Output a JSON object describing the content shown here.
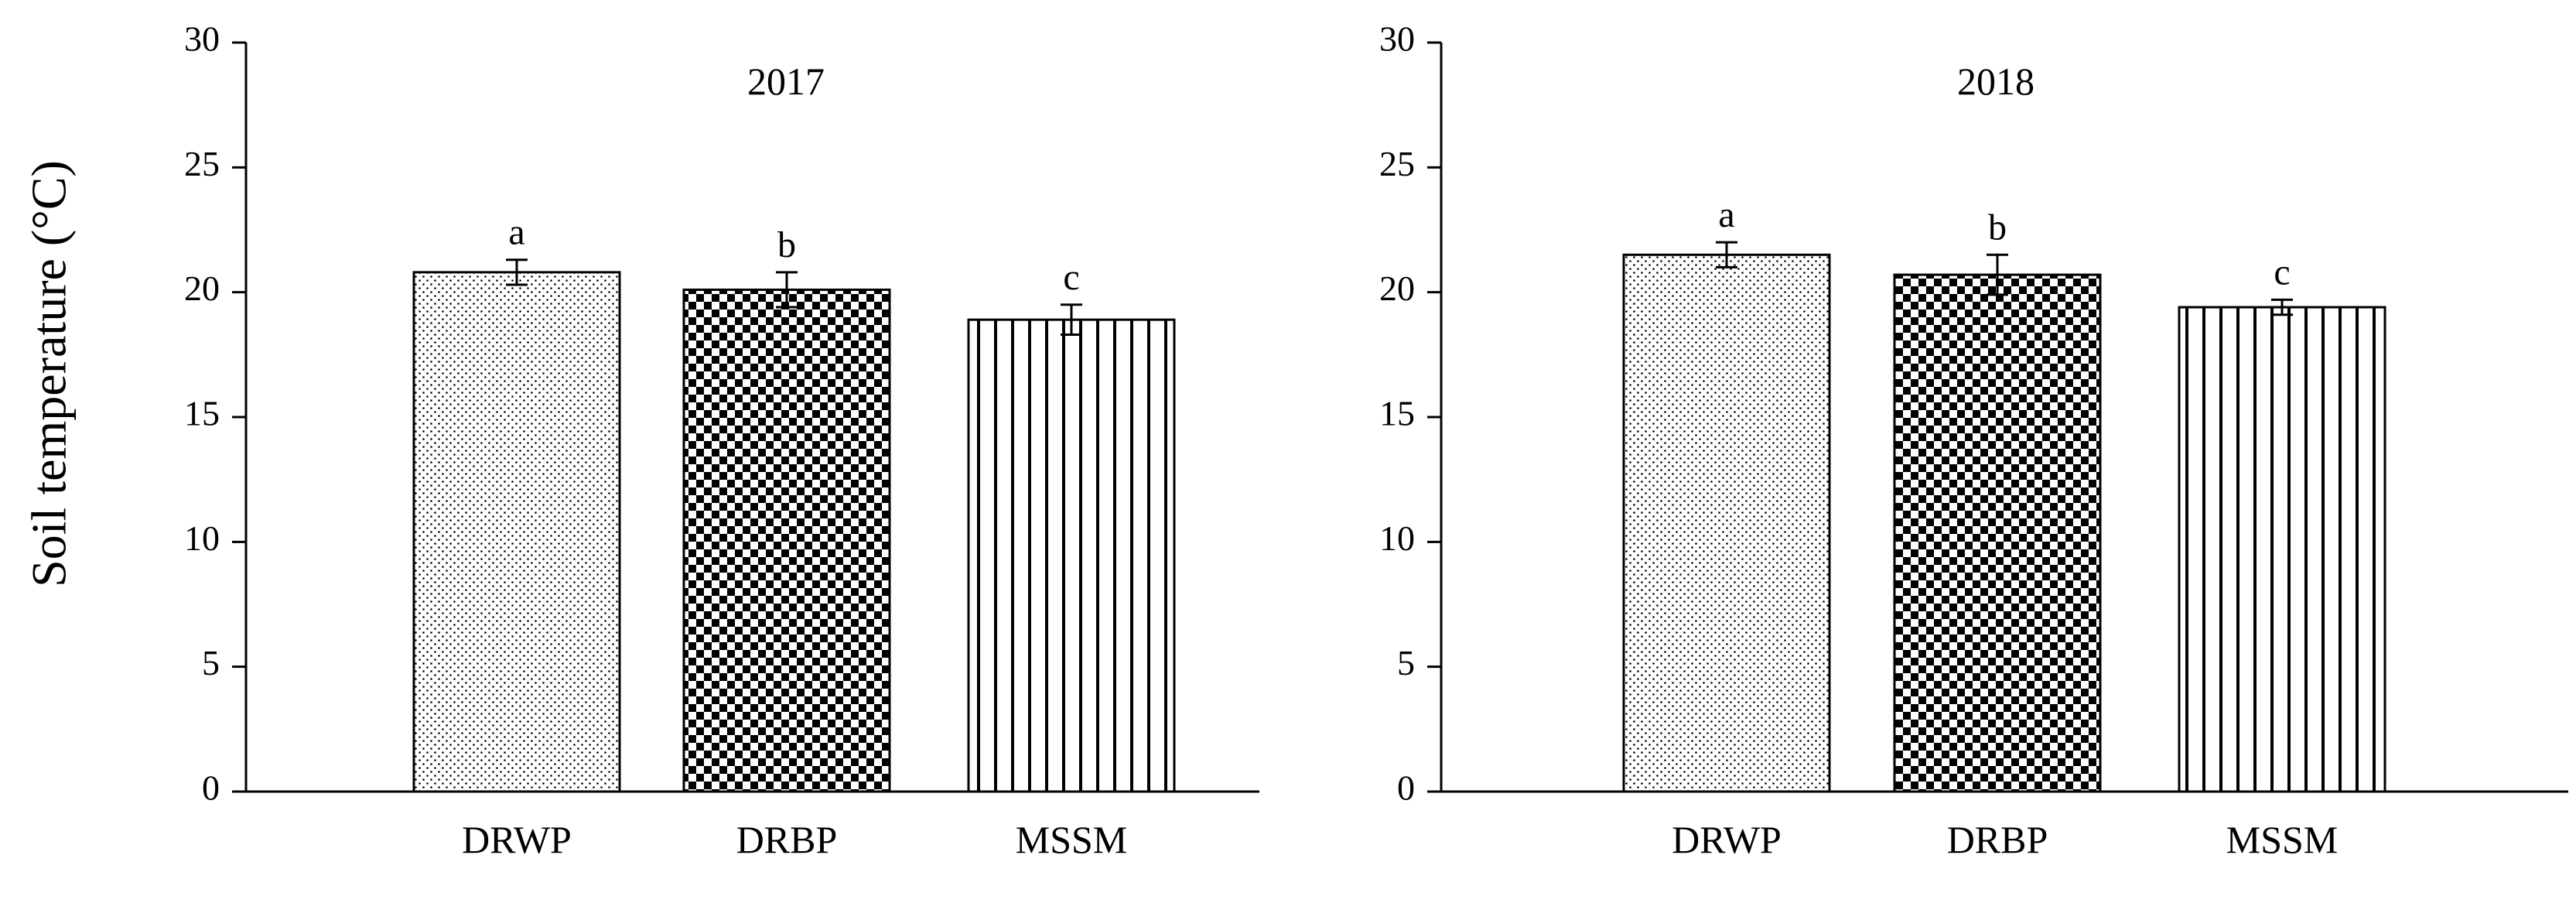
{
  "chart_data": {
    "type": "bar",
    "ylabel": "Soil temperature (°C)",
    "ylim": [
      0,
      30
    ],
    "yticks": [
      0,
      5,
      10,
      15,
      20,
      25,
      30
    ],
    "categories": [
      "DRWP",
      "DRBP",
      "MSSM"
    ],
    "patterns": [
      "dots",
      "checker",
      "vertical-lines"
    ],
    "panels": [
      {
        "title": "2017",
        "values": [
          20.8,
          20.1,
          18.9
        ],
        "errors": [
          0.5,
          0.7,
          0.6
        ],
        "significance": [
          "a",
          "b",
          "c"
        ]
      },
      {
        "title": "2018",
        "values": [
          21.5,
          20.7,
          19.4
        ],
        "errors": [
          0.5,
          0.8,
          0.3
        ],
        "significance": [
          "a",
          "b",
          "c"
        ]
      }
    ]
  },
  "colors": {
    "axis": "#000000",
    "bar_fill": "#ffffff",
    "pattern": "#000000"
  }
}
